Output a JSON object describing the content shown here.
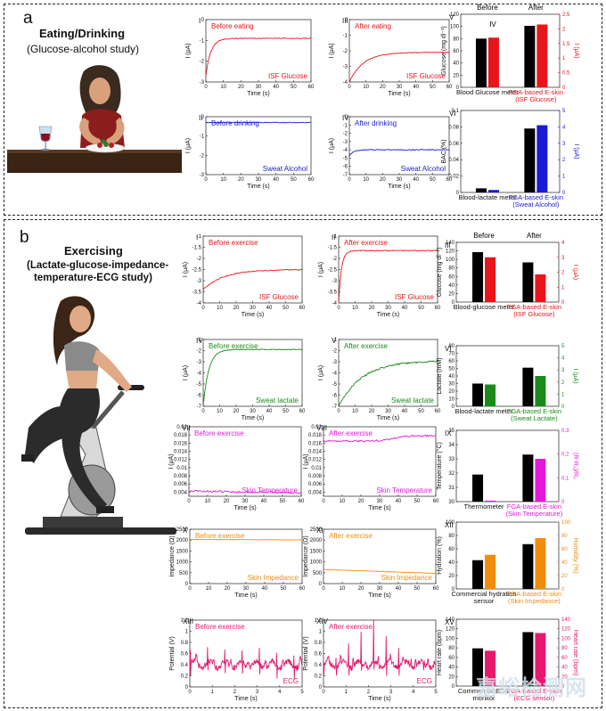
{
  "colors": {
    "red": "#e8161b",
    "blue": "#1a1ad6",
    "green": "#1a8a1a",
    "magenta": "#e619d9",
    "orange": "#f28c0f",
    "pink": "#e6196e",
    "black": "#000000"
  },
  "watermark": "嘉峪检测网",
  "panel_a": {
    "letter": "a",
    "title": "Eating/Drinking",
    "subtitle": "(Glucose-alcohol study)",
    "illustration": "woman-eating-at-table-with-wine-glass"
  },
  "panel_b": {
    "letter": "b",
    "title": "Exercising",
    "subtitle_lines": [
      "(Lactate-glucose-impedance-",
      "temperature-ECG study)"
    ],
    "illustration": "woman-on-stationary-bike"
  },
  "chart_data": [
    {
      "id": "a-I",
      "type": "line",
      "roman": "I",
      "annotation": "Before eating",
      "series_label": "ISF Glucose",
      "color": "red",
      "xlabel": "Time (s)",
      "ylabel": "I (μA)",
      "xlim": [
        0,
        60
      ],
      "ylim": [
        -3,
        0
      ],
      "xticks": [
        0,
        10,
        20,
        30,
        40,
        50,
        60
      ],
      "yticks": [
        0,
        -1,
        -2,
        -3
      ],
      "curve": {
        "kind": "rise",
        "start": -2.7,
        "end": -0.9,
        "k": 0.35,
        "noise": 0.02
      }
    },
    {
      "id": "a-III",
      "type": "line",
      "roman": "III",
      "annotation": "After eating",
      "series_label": "ISF Glucose",
      "color": "red",
      "xlabel": "Time (s)",
      "ylabel": "I (μA)",
      "xlim": [
        0,
        60
      ],
      "ylim": [
        -4,
        0
      ],
      "xticks": [
        0,
        10,
        20,
        30,
        40,
        50,
        60
      ],
      "yticks": [
        0,
        -1,
        -2,
        -3,
        -4
      ],
      "curve": {
        "kind": "rise",
        "start": -4.0,
        "end": -2.1,
        "k": 0.12,
        "noise": 0.02
      }
    },
    {
      "id": "a-II",
      "type": "line",
      "roman": "II",
      "annotation": "Before drinking",
      "series_label": "Sweat Alcohol",
      "color": "blue",
      "xlabel": "Time (s)",
      "ylabel": "I (μA)",
      "xlim": [
        0,
        60
      ],
      "ylim": [
        -3,
        0
      ],
      "xticks": [
        0,
        10,
        20,
        30,
        40,
        50,
        60
      ],
      "yticks": [
        0,
        -1,
        -2,
        -3
      ],
      "curve": {
        "kind": "flat",
        "start": -0.3,
        "end": -0.3,
        "k": 0.5,
        "noise": 0.02
      }
    },
    {
      "id": "a-IV",
      "type": "line",
      "roman": "IV",
      "annotation": "After drinking",
      "series_label": "Sweat Alcohol",
      "color": "blue",
      "xlabel": "Time (s)",
      "ylabel": "I (μA)",
      "xlim": [
        0,
        60
      ],
      "ylim": [
        -7,
        0
      ],
      "xticks": [
        0,
        10,
        20,
        30,
        40,
        50,
        60
      ],
      "yticks": [
        0,
        -1,
        -2,
        -3,
        -4,
        -5,
        -6,
        -7
      ],
      "curve": {
        "kind": "rise",
        "start": -4.7,
        "end": -4.0,
        "k": 0.4,
        "noise": 0.06
      }
    },
    {
      "id": "b-I",
      "type": "line",
      "roman": "I",
      "annotation": "Before exercise",
      "series_label": "ISF Glucose",
      "color": "red",
      "xlabel": "Time (s)",
      "ylabel": "I (μA)",
      "xlim": [
        0,
        60
      ],
      "ylim": [
        -4,
        -1
      ],
      "xticks": [
        0,
        10,
        20,
        30,
        40,
        50,
        60
      ],
      "yticks": [
        -1,
        -1.5,
        -2,
        -2.5,
        -3,
        -3.5,
        -4
      ],
      "curve": {
        "kind": "rise",
        "start": -3.4,
        "end": -2.5,
        "k": 0.08,
        "noise": 0.02
      }
    },
    {
      "id": "b-II",
      "type": "line",
      "roman": "II",
      "annotation": "After exercise",
      "series_label": "ISF Glucose",
      "color": "red",
      "xlabel": "Time (s)",
      "ylabel": "I (μA)",
      "xlim": [
        0,
        60
      ],
      "ylim": [
        -4,
        -1
      ],
      "xticks": [
        0,
        10,
        20,
        30,
        40,
        50,
        60
      ],
      "yticks": [
        -1,
        -1.5,
        -2,
        -2.5,
        -3,
        -3.5,
        -4
      ],
      "curve": {
        "kind": "rise",
        "start": -4.0,
        "end": -1.65,
        "k": 0.6,
        "noise": 0.02
      }
    },
    {
      "id": "b-IV",
      "type": "line",
      "roman": "IV",
      "annotation": "Before exercise",
      "series_label": "Sweat lactate",
      "color": "green",
      "xlabel": "Time (s)",
      "ylabel": "I (μA)",
      "xlim": [
        0,
        60
      ],
      "ylim": [
        -7,
        -1
      ],
      "xticks": [
        0,
        10,
        20,
        30,
        40,
        50,
        60
      ],
      "yticks": [
        -1,
        -2,
        -3,
        -4,
        -5,
        -6,
        -7
      ],
      "curve": {
        "kind": "rise",
        "start": -7.0,
        "end": -1.9,
        "k": 0.3,
        "noise": 0.04
      }
    },
    {
      "id": "b-V",
      "type": "line",
      "roman": "V",
      "annotation": "After exercise",
      "series_label": "Sweat lactate",
      "color": "green",
      "xlabel": "Time (s)",
      "ylabel": "I (μA)",
      "xlim": [
        0,
        60
      ],
      "ylim": [
        -7,
        -1
      ],
      "xticks": [
        0,
        10,
        20,
        30,
        40,
        50,
        60
      ],
      "yticks": [
        -1,
        -2,
        -3,
        -4,
        -5,
        -6,
        -7
      ],
      "curve": {
        "kind": "rise",
        "start": -7.0,
        "end": -2.9,
        "k": 0.07,
        "noise": 0.08
      }
    },
    {
      "id": "b-VII",
      "type": "line",
      "roman": "VII",
      "annotation": "Before exercise",
      "series_label": "Skin Temperature",
      "color": "magenta",
      "xlabel": "Time (s)",
      "ylabel": "I (μA)",
      "xlim": [
        0,
        60
      ],
      "ylim": [
        0.003,
        0.02
      ],
      "xticks": [
        0,
        10,
        20,
        30,
        40,
        50,
        60
      ],
      "yticks": [
        0.004,
        0.006,
        0.008,
        0.01,
        0.012,
        0.014,
        0.016,
        0.018,
        0.02
      ],
      "curve": {
        "kind": "flat",
        "start": 0.0043,
        "end": 0.0038,
        "k": 0.1,
        "noise": 0.0002
      }
    },
    {
      "id": "b-VIII",
      "type": "line",
      "roman": "VIII",
      "annotation": "After exercise",
      "series_label": "Skin Temperature",
      "color": "magenta",
      "xlabel": "Time (s)",
      "ylabel": "I (μA)",
      "xlim": [
        0,
        60
      ],
      "ylim": [
        0.003,
        0.02
      ],
      "xticks": [
        0,
        10,
        20,
        30,
        40,
        50,
        60
      ],
      "yticks": [
        0.004,
        0.006,
        0.008,
        0.01,
        0.012,
        0.014,
        0.016,
        0.018,
        0.02
      ],
      "curve": {
        "kind": "bump",
        "start": 0.0165,
        "end": 0.0178,
        "k": 0.1,
        "noise": 0.0002
      }
    },
    {
      "id": "b-X",
      "type": "line",
      "roman": "X",
      "annotation": "Before exercise",
      "series_label": "Skin Impedance",
      "color": "orange",
      "xlabel": "Time (s)",
      "ylabel": "Impedance (Ω)",
      "xlim": [
        0,
        60
      ],
      "ylim": [
        0,
        2500
      ],
      "xticks": [
        0,
        10,
        20,
        30,
        40,
        50,
        60
      ],
      "yticks": [
        0,
        500,
        1000,
        1500,
        2000,
        2500
      ],
      "curve": {
        "kind": "flat",
        "start": 2030,
        "end": 2010,
        "k": 0.1,
        "noise": 8
      }
    },
    {
      "id": "b-XI",
      "type": "line",
      "roman": "XI",
      "annotation": "After exercise",
      "series_label": "Skin Impedance",
      "color": "orange",
      "xlabel": "Time (s)",
      "ylabel": "Impedance (Ω)",
      "xlim": [
        0,
        60
      ],
      "ylim": [
        0,
        2500
      ],
      "xticks": [
        0,
        10,
        20,
        30,
        40,
        50,
        60
      ],
      "yticks": [
        0,
        500,
        1000,
        1500,
        2000,
        2500
      ],
      "curve": {
        "kind": "linear",
        "start": 650,
        "end": 470,
        "k": 0.1,
        "noise": 6
      }
    },
    {
      "id": "b-XIII",
      "type": "line",
      "roman": "XIII",
      "annotation": "Before exercise",
      "series_label": "ECG",
      "color": "pink",
      "xlabel": "Time (s)",
      "ylabel": "Potential (V)",
      "xlim": [
        0,
        5
      ],
      "ylim": [
        0,
        1.2
      ],
      "xticks": [
        0,
        1,
        2,
        3,
        4,
        5
      ],
      "yticks": [
        0,
        0.2,
        0.4,
        0.6,
        0.8,
        1.0,
        1.2
      ],
      "curve": {
        "kind": "ecg",
        "start": 0.4,
        "end": 0.4,
        "k": 1.3,
        "noise": 0.05
      }
    },
    {
      "id": "b-XIV",
      "type": "line",
      "roman": "XIV",
      "annotation": "After exercise",
      "series_label": "ECG",
      "color": "pink",
      "xlabel": "Time (s)",
      "ylabel": "Potential (V)",
      "xlim": [
        0,
        5
      ],
      "ylim": [
        0,
        1.2
      ],
      "xticks": [
        0,
        1,
        2,
        3,
        4,
        5
      ],
      "yticks": [
        0,
        0.2,
        0.4,
        0.6,
        0.8,
        1.0,
        1.2
      ],
      "curve": {
        "kind": "ecg",
        "start": 0.4,
        "end": 0.4,
        "k": 1.8,
        "noise": 0.05
      }
    },
    {
      "id": "a-V",
      "type": "bar",
      "roman": "V",
      "group_labels": [
        "Before",
        "After"
      ],
      "inner_label": "IV",
      "categories": [
        "Blood Glucose meter",
        "FGA-based E-skin"
      ],
      "category_sub": [
        "",
        "(ISF Glucose)"
      ],
      "left": {
        "label": "Glucose (mg dl⁻¹)",
        "ylim": [
          0,
          120
        ],
        "ticks": [
          0,
          20,
          40,
          60,
          80,
          100,
          120
        ],
        "color": "black",
        "values": [
          80,
          101
        ]
      },
      "right": {
        "label": "I (μA)",
        "ylim": [
          0,
          2.5
        ],
        "ticks": [
          0,
          0.5,
          1,
          1.5,
          2,
          2.5
        ],
        "color": "red",
        "values": [
          1.7,
          2.15
        ]
      }
    },
    {
      "id": "a-VI",
      "type": "bar",
      "roman": "VI",
      "categories": [
        "Blood-lactate meter",
        "FGA-based E-skin"
      ],
      "category_sub": [
        "",
        "(Sweat Alcohol)"
      ],
      "left": {
        "label": "BAC (%)",
        "ylim": [
          0,
          0.1
        ],
        "ticks": [
          0,
          0.02,
          0.04,
          0.06,
          0.08,
          0.1
        ],
        "color": "black",
        "values": [
          0.005,
          0.078
        ]
      },
      "right": {
        "label": "I (μA)",
        "ylim": [
          0,
          5
        ],
        "ticks": [
          0,
          1,
          2,
          3,
          4,
          5
        ],
        "color": "blue",
        "values": [
          0.15,
          4.1
        ]
      }
    },
    {
      "id": "b-III",
      "type": "bar",
      "roman": "III",
      "group_labels": [
        "Before",
        "After"
      ],
      "categories": [
        "Blood-glucose meter",
        "FGA-based E-skin"
      ],
      "category_sub": [
        "",
        "(ISF Glucose)"
      ],
      "left": {
        "label": "Glucose (mg dl⁻¹)",
        "ylim": [
          0,
          140
        ],
        "ticks": [
          0,
          20,
          40,
          60,
          80,
          100,
          120,
          140
        ],
        "color": "black",
        "values": [
          117,
          93
        ]
      },
      "right": {
        "label": "I (μA)",
        "ylim": [
          0,
          4
        ],
        "ticks": [
          0,
          1,
          2,
          3,
          4
        ],
        "color": "red",
        "values": [
          3.0,
          1.85
        ]
      }
    },
    {
      "id": "b-VI",
      "type": "bar",
      "roman": "VI",
      "categories": [
        "Blood-lactate meter",
        "FGA-based E-skin"
      ],
      "category_sub": [
        "",
        "(Sweat Lactate)"
      ],
      "left": {
        "label": "Lactate (mM)",
        "ylim": [
          0,
          80
        ],
        "ticks": [
          0,
          10,
          20,
          30,
          40,
          50,
          60,
          70,
          80
        ],
        "color": "black",
        "values": [
          30,
          51
        ]
      },
      "right": {
        "label": "I (μA)",
        "ylim": [
          0,
          5
        ],
        "ticks": [
          0,
          1,
          2,
          3,
          4,
          5
        ],
        "color": "green",
        "values": [
          1.8,
          2.5
        ]
      }
    },
    {
      "id": "b-IX",
      "type": "bar",
      "roman": "IX",
      "categories": [
        "Thermometer",
        "FGA-based E-skin"
      ],
      "category_sub": [
        "",
        "(Skin Temperature)"
      ],
      "left": {
        "label": "Temperature (°C)",
        "ylim": [
          30,
          35
        ],
        "ticks": [
          30,
          31,
          32,
          33,
          34,
          35
        ],
        "color": "black",
        "values": [
          31.9,
          33.3
        ]
      },
      "right": {
        "label": "(R-R₀)/R₀",
        "ylim": [
          0,
          0.3
        ],
        "ticks": [
          0,
          0.1,
          0.2,
          0.3
        ],
        "color": "magenta",
        "values": [
          0.004,
          0.18
        ]
      }
    },
    {
      "id": "b-XII",
      "type": "bar",
      "roman": "XII",
      "categories": [
        "Commercial hydration",
        "FGA-based E-skin"
      ],
      "category_sub": [
        "sensor",
        "(Skin Impedance)"
      ],
      "left": {
        "label": "Hydration (%)",
        "ylim": [
          0,
          100
        ],
        "ticks": [
          0,
          20,
          40,
          60,
          80,
          100
        ],
        "color": "black",
        "values": [
          43,
          67
        ]
      },
      "right": {
        "label": "Humidity (%)",
        "ylim": [
          0,
          100
        ],
        "ticks": [
          0,
          20,
          40,
          60,
          80,
          100
        ],
        "color": "orange",
        "values": [
          51,
          76
        ]
      }
    },
    {
      "id": "b-XV",
      "type": "bar",
      "roman": "XV",
      "categories": [
        "Commercial ECG",
        "FGA-based E-skin"
      ],
      "category_sub": [
        "monitor",
        "(ECG sensor)"
      ],
      "left": {
        "label": "Heart rate (bpm)",
        "ylim": [
          0,
          140
        ],
        "ticks": [
          0,
          20,
          40,
          60,
          80,
          100,
          120,
          140
        ],
        "color": "black",
        "values": [
          79,
          113
        ]
      },
      "right": {
        "label": "Heart rate (bpm)",
        "ylim": [
          0,
          140
        ],
        "ticks": [
          0,
          20,
          40,
          60,
          80,
          100,
          120,
          140
        ],
        "color": "pink",
        "values": [
          74,
          111
        ]
      }
    }
  ]
}
